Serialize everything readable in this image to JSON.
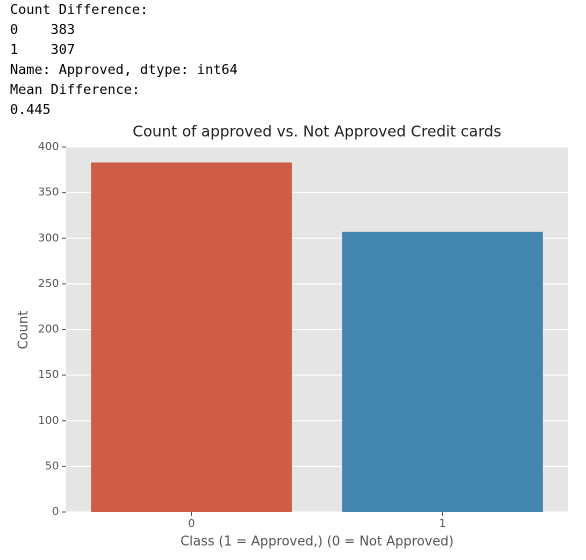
{
  "output_text": [
    "Count Difference:",
    "0    383",
    "1    307",
    "Name: Approved, dtype: int64",
    "Mean Difference:",
    "0.445"
  ],
  "chart_data": {
    "type": "bar",
    "title": "Count of approved vs. Not Approved Credit cards",
    "xlabel": "Class (1 = Approved,) (0 = Not Approved)",
    "ylabel": "Count",
    "categories": [
      "0",
      "1"
    ],
    "values": [
      383,
      307
    ],
    "colors": [
      "#cf5c45",
      "#4286b0"
    ],
    "ylim": [
      0,
      400
    ],
    "yticks": [
      0,
      50,
      100,
      150,
      200,
      250,
      300,
      350,
      400
    ],
    "grid": true
  }
}
